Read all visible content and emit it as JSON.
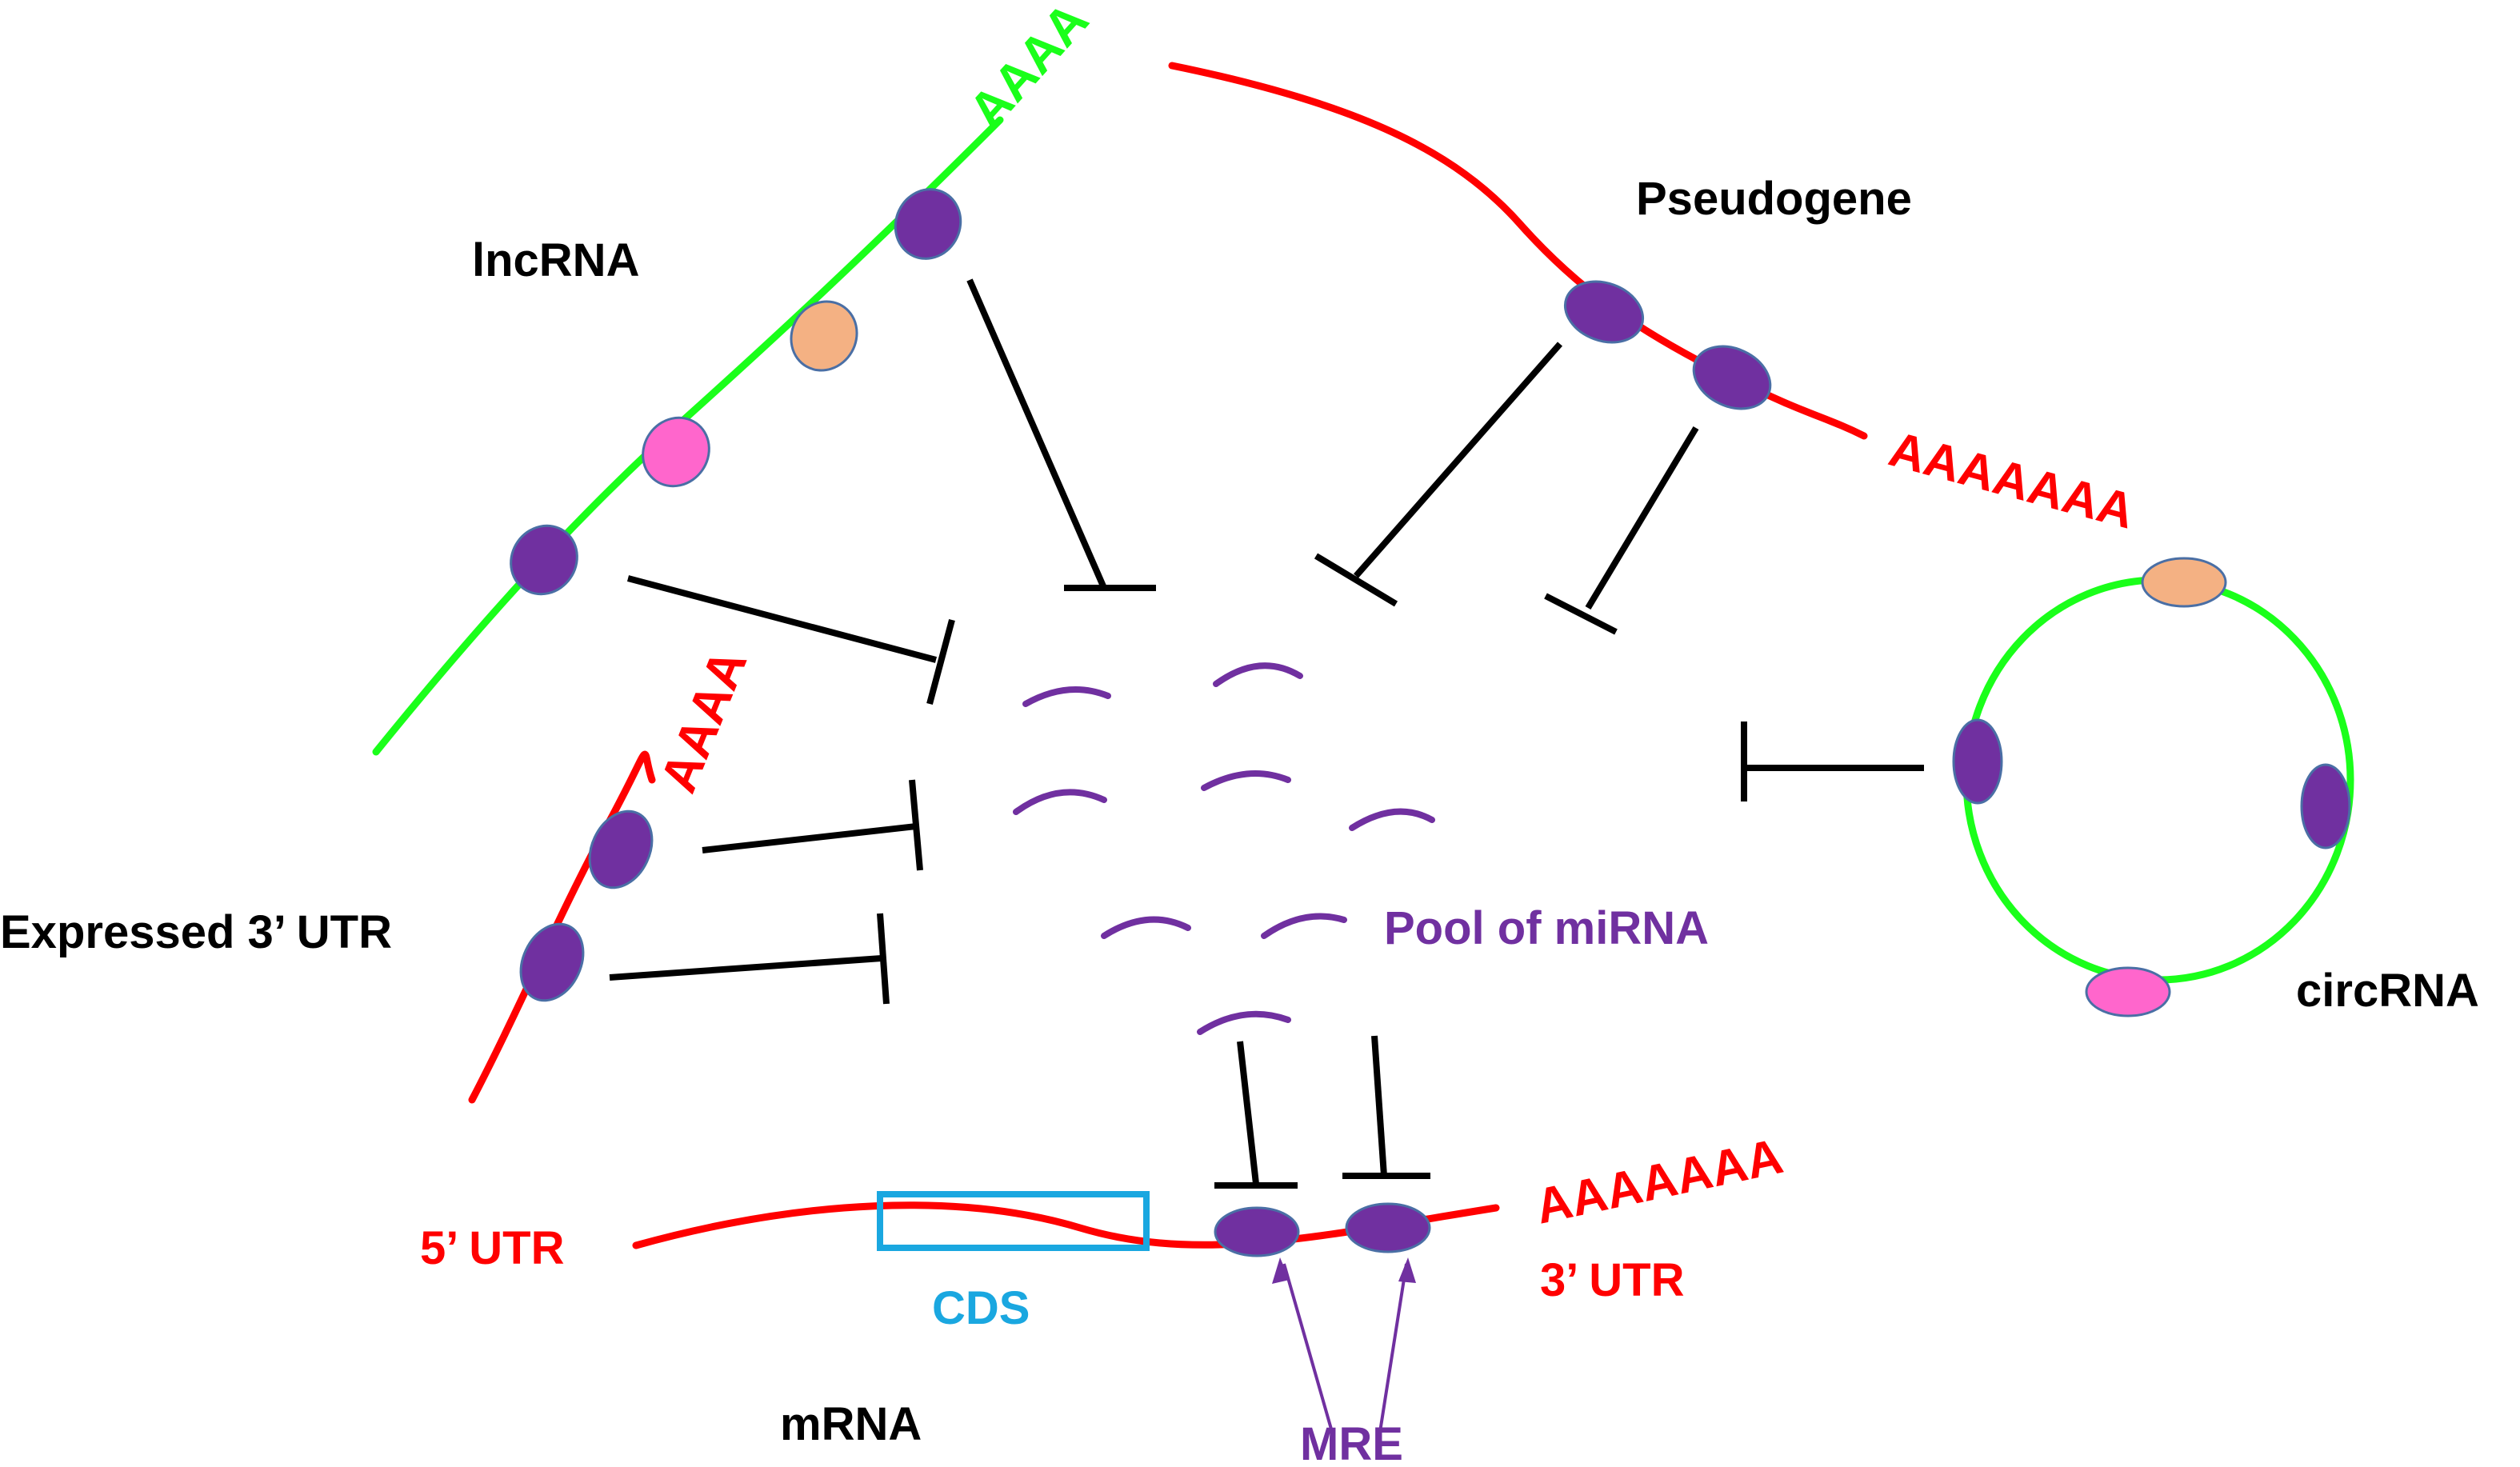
{
  "labels": {
    "lncrna": "lncRNA",
    "pseudogene": "Pseudogene",
    "expressed_utr": "Expressed 3’ UTR",
    "circrna": "circRNA",
    "pool": "Pool of miRNA",
    "utr5": "5’ UTR",
    "utr3": "3’ UTR",
    "cds": "CDS",
    "mrna": "mRNA",
    "mre": "MRE"
  },
  "polyA": {
    "lncrna": "AAAA",
    "pseudogene": "AAAAAAA",
    "expressed_utr": "AAAA",
    "mrna": "AAAAAAA"
  },
  "colors": {
    "red_strand": "#ff0000",
    "green_strand": "#1aff1a",
    "mre_site": "#7030a0",
    "orange_site": "#f4b183",
    "pink_site": "#ff66cc",
    "mirna": "#7030a0",
    "cds_box": "#1aa7e0",
    "inhibition": "#000000"
  }
}
